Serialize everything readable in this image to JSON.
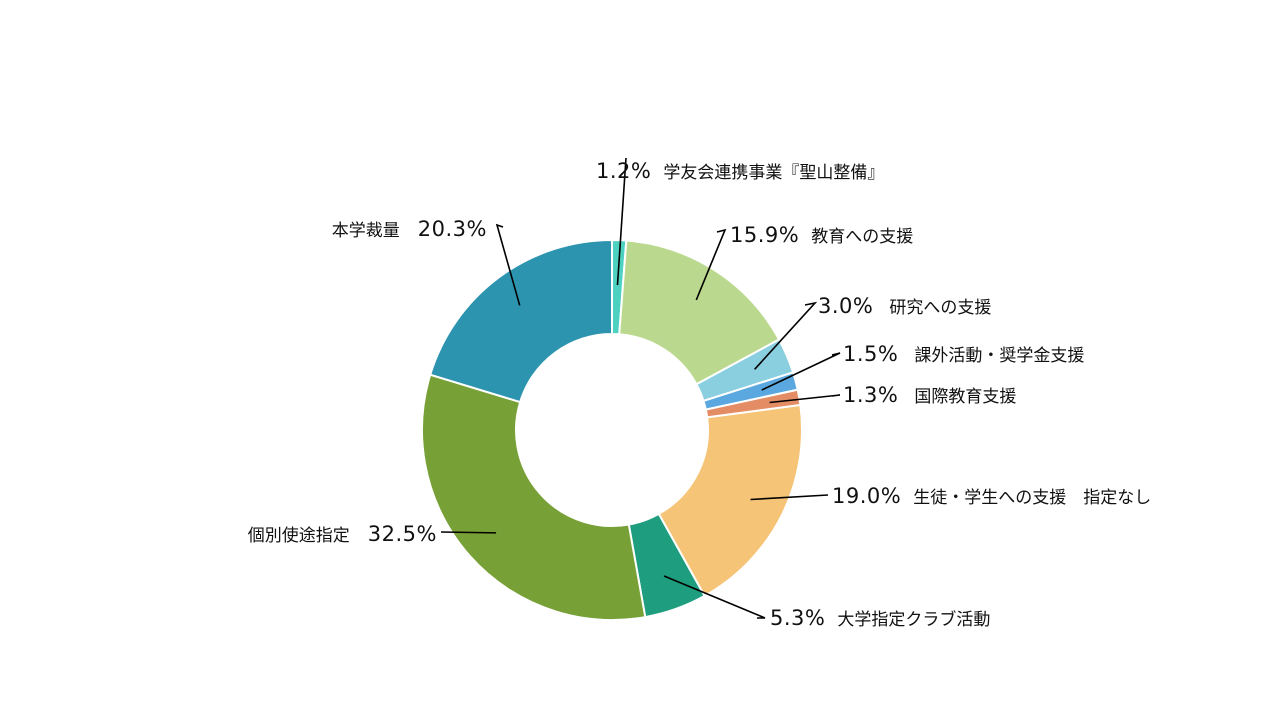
{
  "chart_data": {
    "type": "pie",
    "variant": "donut",
    "start": "top",
    "direction": "clockwise",
    "slices": [
      {
        "label": "学友会連携事業『聖山整備』",
        "value": 1.2,
        "value_text": "1.2%",
        "color": "#4FD1C1"
      },
      {
        "label": "教育への支援",
        "value": 15.9,
        "value_text": "15.9%",
        "color": "#BAD98E"
      },
      {
        "label": "研究への支援",
        "value": 3.0,
        "value_text": "3.0%",
        "color": "#8ACFDF"
      },
      {
        "label": "課外活動・奨学金支援",
        "value": 1.5,
        "value_text": "1.5%",
        "color": "#5BA7E0"
      },
      {
        "label": "国際教育支援",
        "value": 1.3,
        "value_text": "1.3%",
        "color": "#E48D65"
      },
      {
        "label": "生徒・学生への支援　指定なし",
        "value": 19.0,
        "value_text": "19.0%",
        "color": "#F5C477"
      },
      {
        "label": "大学指定クラブ活動",
        "value": 5.3,
        "value_text": "5.3%",
        "color": "#1E9E7F"
      },
      {
        "label": "個別使途指定",
        "value": 32.5,
        "value_text": "32.5%",
        "color": "#77A037"
      },
      {
        "label": "本学裁量",
        "value": 20.3,
        "value_text": "20.3%",
        "color": "#2D94B0"
      }
    ]
  }
}
